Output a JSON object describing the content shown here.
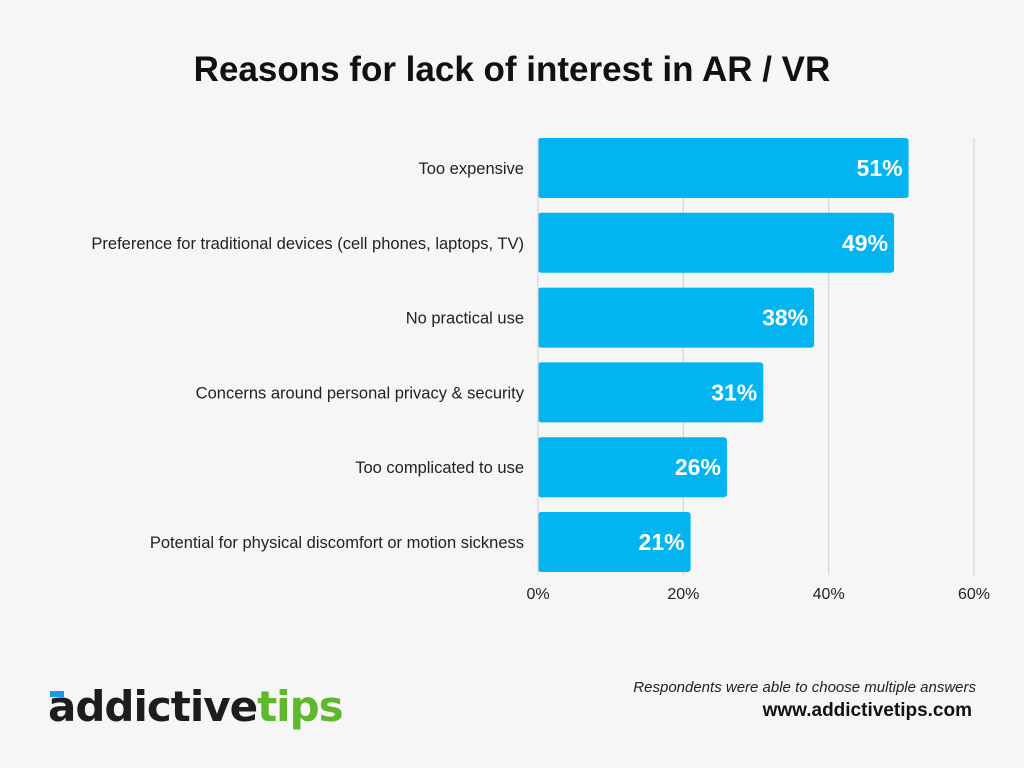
{
  "chart_data": {
    "type": "bar",
    "orientation": "horizontal",
    "title": "Reasons for lack of interest in AR / VR",
    "categories": [
      "Too expensive",
      "Preference for traditional devices (cell phones, laptops, TV)",
      "No practical use",
      "Concerns around personal privacy & security",
      "Too complicated to use",
      "Potential for physical discomfort or motion sickness"
    ],
    "values": [
      51,
      49,
      38,
      31,
      26,
      21
    ],
    "data_labels": [
      "51%",
      "49%",
      "38%",
      "31%",
      "26%",
      "21%"
    ],
    "xlim": [
      0,
      60
    ],
    "x_ticks": [
      0,
      20,
      40,
      60
    ],
    "x_tick_labels": [
      "0%",
      "20%",
      "40%",
      "60%"
    ],
    "grid": "vertical",
    "bar_color": "#02b4f0",
    "legend": "none"
  },
  "footer": {
    "note": "Respondents were able to choose multiple answers",
    "website": "www.addictivetips.com",
    "logo_text_dark": "addictive",
    "logo_text_green": "tips"
  }
}
